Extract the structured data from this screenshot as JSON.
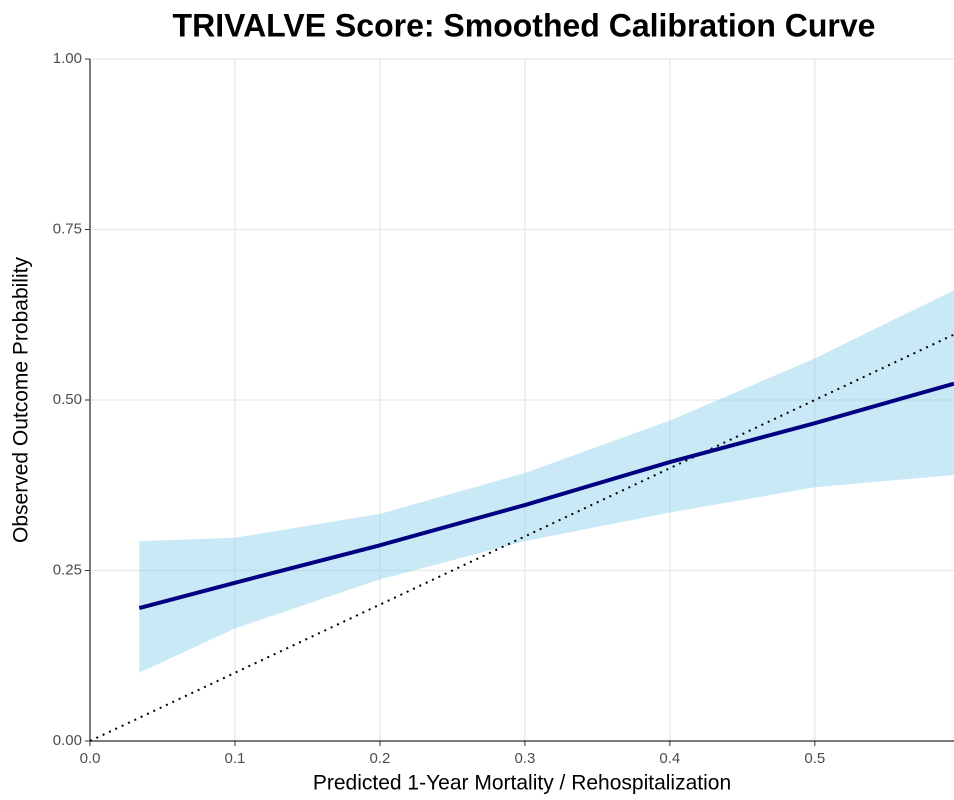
{
  "chart_data": {
    "type": "line",
    "title": "TRIVALVE Score: Smoothed Calibration Curve",
    "x_label": "Predicted 1-Year Mortality / Rehospitalization",
    "y_label": "Observed Outcome Probability",
    "x": [
      0.034,
      0.1,
      0.2,
      0.3,
      0.4,
      0.5,
      0.596
    ],
    "values": [
      0.195,
      0.232,
      0.287,
      0.346,
      0.409,
      0.466,
      0.524
    ],
    "band_lower": [
      0.1,
      0.165,
      0.237,
      0.293,
      0.335,
      0.372,
      0.39
    ],
    "band_upper": [
      0.293,
      0.298,
      0.333,
      0.393,
      0.47,
      0.561,
      0.661
    ],
    "color": "#000080",
    "band_color": "#87ceeb",
    "reference": {
      "x": [
        0,
        0.596
      ],
      "values": [
        0,
        0.596
      ],
      "color": "#000000"
    },
    "xlim": [
      0,
      0.596
    ],
    "ylim": [
      0,
      1
    ],
    "xticks": [
      {
        "value": 0,
        "label": "0.0"
      },
      0.1,
      0.2,
      0.3,
      0.4,
      0.5
    ],
    "yticks": [
      {
        "value": 0,
        "label": "0.00"
      },
      {
        "value": 0.25,
        "label": "0.25"
      },
      {
        "value": 0.5,
        "label": "0.50"
      },
      {
        "value": 0.75,
        "label": "0.75"
      },
      {
        "value": 1,
        "label": "1.00"
      }
    ],
    "grid": true
  }
}
